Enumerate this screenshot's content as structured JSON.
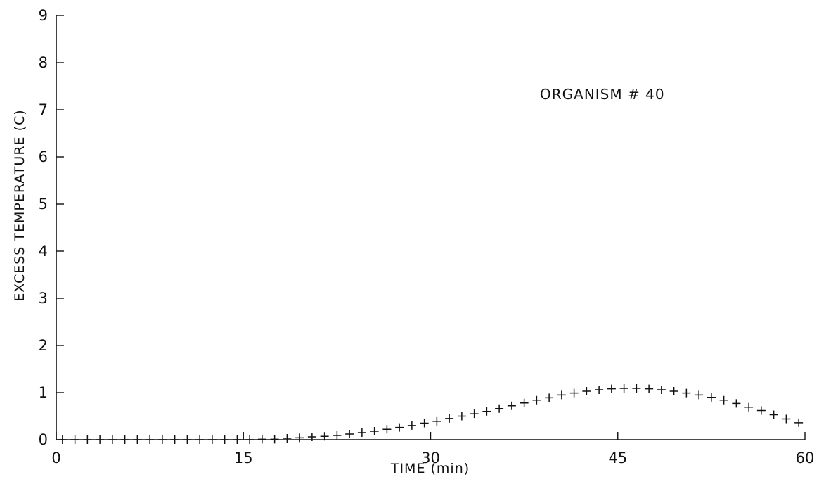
{
  "chart_data": {
    "type": "scatter",
    "title": "",
    "annotation": "ORGANISM # 40",
    "xlabel": "TIME (min)",
    "ylabel": "EXCESS TEMPERATURE (C)",
    "xlim": [
      0,
      60
    ],
    "ylim": [
      0,
      9
    ],
    "xticks": [
      0,
      15,
      30,
      45,
      60
    ],
    "yticks": [
      0,
      1,
      2,
      3,
      4,
      5,
      6,
      7,
      8,
      9
    ],
    "grid": false,
    "marker": "plus",
    "series": [
      {
        "x": [
          0.5,
          1.5,
          2.5,
          3.5,
          4.5,
          5.5,
          6.5,
          7.5,
          8.5,
          9.5,
          10.5,
          11.5,
          12.5,
          13.5,
          14.5,
          15.5,
          16.5,
          17.5,
          18.5,
          19.5,
          20.5,
          21.5,
          22.5,
          23.5,
          24.5,
          25.5,
          26.5,
          27.5,
          28.5,
          29.5,
          30.5,
          31.5,
          32.5,
          33.5,
          34.5,
          35.5,
          36.5,
          37.5,
          38.5,
          39.5,
          40.5,
          41.5,
          42.5,
          43.5,
          44.5,
          45.5,
          46.5,
          47.5,
          48.5,
          49.5,
          50.5,
          51.5,
          52.5,
          53.5,
          54.5,
          55.5,
          56.5,
          57.5,
          58.5,
          59.5
        ],
        "y": [
          0,
          0,
          0,
          0,
          0,
          0,
          0,
          0,
          0,
          0,
          0,
          0,
          0,
          0,
          0,
          0,
          0.01,
          0.01,
          0.03,
          0.04,
          0.06,
          0.07,
          0.09,
          0.12,
          0.15,
          0.18,
          0.22,
          0.26,
          0.3,
          0.35,
          0.39,
          0.45,
          0.5,
          0.55,
          0.6,
          0.66,
          0.72,
          0.78,
          0.84,
          0.89,
          0.95,
          0.99,
          1.03,
          1.06,
          1.08,
          1.09,
          1.09,
          1.08,
          1.06,
          1.03,
          0.99,
          0.95,
          0.9,
          0.84,
          0.77,
          0.69,
          0.62,
          0.53,
          0.44,
          0.36
        ]
      }
    ]
  }
}
